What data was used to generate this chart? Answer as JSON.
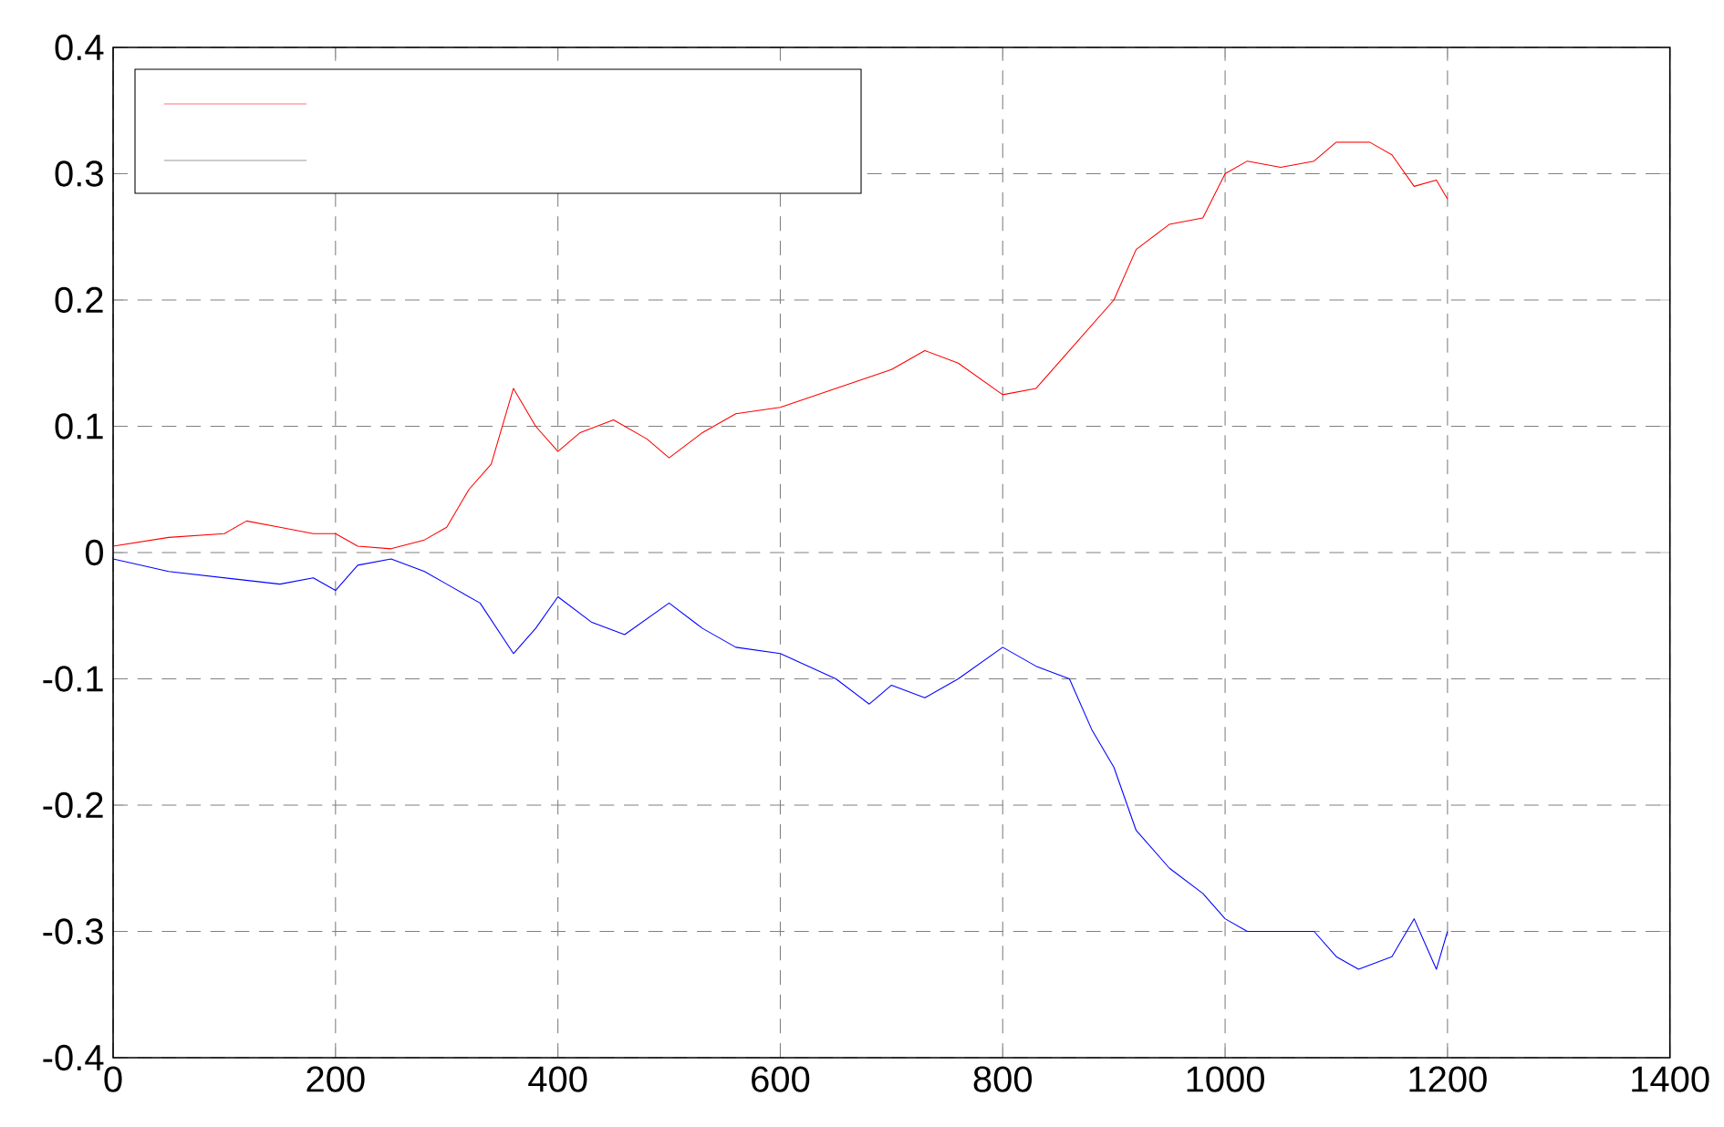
{
  "chart_data": {
    "type": "line",
    "xlim": [
      0,
      1400
    ],
    "ylim": [
      -0.4,
      0.4
    ],
    "xticks": [
      0,
      200,
      400,
      600,
      800,
      1000,
      1200,
      1400
    ],
    "yticks": [
      -0.4,
      -0.3,
      -0.2,
      -0.1,
      0,
      0.1,
      0.2,
      0.3,
      0.4
    ],
    "grid": true,
    "series": [
      {
        "color": "#ff0000",
        "x": [
          0,
          50,
          100,
          120,
          150,
          180,
          200,
          220,
          250,
          280,
          300,
          320,
          340,
          360,
          380,
          400,
          420,
          450,
          480,
          500,
          530,
          560,
          600,
          650,
          700,
          730,
          760,
          800,
          830,
          860,
          900,
          920,
          950,
          980,
          1000,
          1020,
          1050,
          1080,
          1100,
          1130,
          1150,
          1170,
          1190,
          1200
        ],
        "values": [
          0.005,
          0.012,
          0.015,
          0.025,
          0.02,
          0.015,
          0.015,
          0.005,
          0.003,
          0.01,
          0.02,
          0.05,
          0.07,
          0.13,
          0.1,
          0.08,
          0.095,
          0.105,
          0.09,
          0.075,
          0.095,
          0.11,
          0.115,
          0.13,
          0.145,
          0.16,
          0.15,
          0.125,
          0.13,
          0.16,
          0.2,
          0.24,
          0.26,
          0.265,
          0.3,
          0.31,
          0.305,
          0.31,
          0.325,
          0.325,
          0.315,
          0.29,
          0.295,
          0.28
        ]
      },
      {
        "color": "#0000ff",
        "x": [
          0,
          50,
          100,
          150,
          180,
          200,
          220,
          250,
          280,
          300,
          330,
          360,
          380,
          400,
          430,
          460,
          500,
          530,
          560,
          600,
          650,
          680,
          700,
          730,
          760,
          800,
          830,
          860,
          880,
          900,
          920,
          950,
          980,
          1000,
          1020,
          1050,
          1080,
          1100,
          1120,
          1150,
          1170,
          1190,
          1200
        ],
        "values": [
          -0.005,
          -0.015,
          -0.02,
          -0.025,
          -0.02,
          -0.03,
          -0.01,
          -0.005,
          -0.015,
          -0.025,
          -0.04,
          -0.08,
          -0.06,
          -0.035,
          -0.055,
          -0.065,
          -0.04,
          -0.06,
          -0.075,
          -0.08,
          -0.1,
          -0.12,
          -0.105,
          -0.115,
          -0.1,
          -0.075,
          -0.09,
          -0.1,
          -0.14,
          -0.17,
          -0.22,
          -0.25,
          -0.27,
          -0.29,
          -0.3,
          -0.3,
          -0.3,
          -0.32,
          -0.33,
          -0.32,
          -0.29,
          -0.33,
          -0.3
        ]
      }
    ]
  }
}
